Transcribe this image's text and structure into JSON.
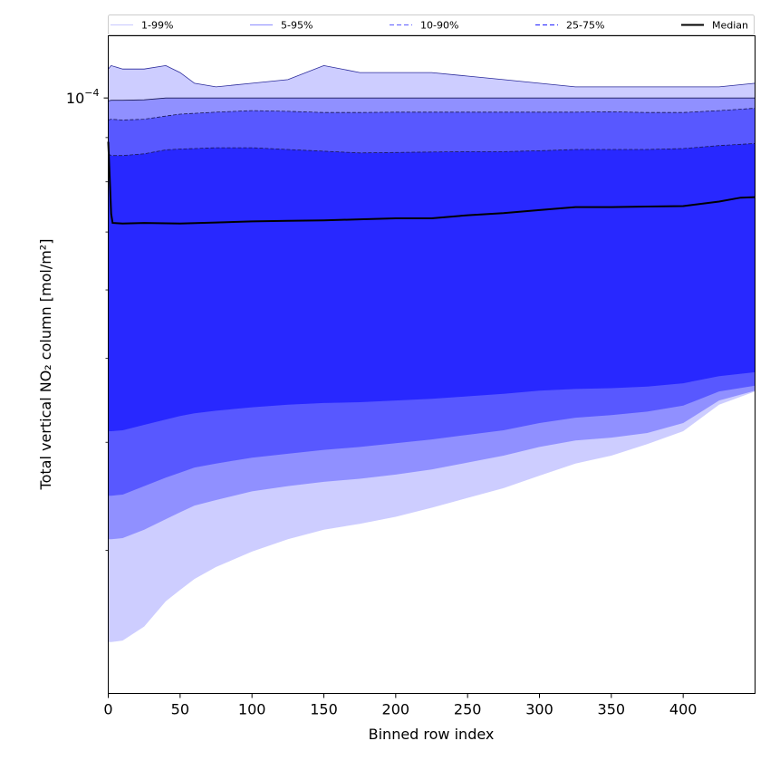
{
  "chart_data": {
    "type": "area",
    "xlabel": "Binned row index",
    "ylabel": "Total vertical NO₂ column [mol/m²]",
    "xlim": [
      0,
      450
    ],
    "ylim": [
      2.05e-05,
      0.000118
    ],
    "yscale": "log",
    "x_ticks": [
      0,
      50,
      100,
      150,
      200,
      250,
      300,
      350,
      400
    ],
    "y_major_tick": {
      "value": 0.0001,
      "base": "10",
      "exponent": "−4"
    },
    "y_minor_ticks": [
      3e-05,
      4e-05,
      5e-05,
      6e-05,
      7e-05,
      8e-05,
      9e-05
    ],
    "grid": false,
    "legend_position": "top (above plot, single row)",
    "legend": [
      {
        "label": "1-99%",
        "color": "#cfcfff",
        "style": "solid"
      },
      {
        "label": "5-95%",
        "color": "#9b9bff",
        "style": "solid"
      },
      {
        "label": "10-90%",
        "color": "#7070ff",
        "style": "dashed"
      },
      {
        "label": "25-75%",
        "color": "#3a3aff",
        "style": "dashed"
      },
      {
        "label": "Median",
        "color": "#000000",
        "style": "solid"
      }
    ],
    "x": [
      0,
      2,
      10,
      25,
      40,
      50,
      60,
      75,
      100,
      125,
      150,
      175,
      200,
      225,
      250,
      275,
      300,
      325,
      350,
      375,
      400,
      425,
      450
    ],
    "bands": [
      {
        "name": "1-99%",
        "color": "#cdcdff",
        "lower": [
          2.35e-05,
          2.35e-05,
          2.36e-05,
          2.45e-05,
          2.62e-05,
          2.7e-05,
          2.78e-05,
          2.87e-05,
          2.99e-05,
          3.09e-05,
          3.17e-05,
          3.22e-05,
          3.28e-05,
          3.36e-05,
          3.45e-05,
          3.54e-05,
          3.66e-05,
          3.78e-05,
          3.86e-05,
          3.98e-05,
          4.12e-05,
          4.42e-05,
          4.58e-05
        ],
        "upper": [
          0.000108,
          0.000109,
          0.000108,
          0.000108,
          0.000109,
          0.000107,
          0.000104,
          0.000103,
          0.000104,
          0.000105,
          0.000109,
          0.000107,
          0.000107,
          0.000107,
          0.000106,
          0.000105,
          0.000104,
          0.000103,
          0.000103,
          0.000103,
          0.000103,
          0.000103,
          0.000104
        ]
      },
      {
        "name": "5-95%",
        "color": "#9090ff",
        "lower": [
          3.09e-05,
          3.09e-05,
          3.1e-05,
          3.17e-05,
          3.26e-05,
          3.32e-05,
          3.38e-05,
          3.43e-05,
          3.51e-05,
          3.56e-05,
          3.6e-05,
          3.63e-05,
          3.67e-05,
          3.72e-05,
          3.79e-05,
          3.86e-05,
          3.95e-05,
          4.02e-05,
          4.05e-05,
          4.1e-05,
          4.21e-05,
          4.47e-05,
          4.59e-05
        ],
        "upper": [
          9.92e-05,
          9.94e-05,
          9.94e-05,
          9.95e-05,
          0.0001,
          0.0001,
          0.0001,
          0.0001,
          0.0001,
          0.0001,
          0.0001,
          0.0001,
          0.0001,
          0.0001,
          0.0001,
          0.0001,
          0.0001,
          0.0001,
          0.0001,
          0.0001,
          0.0001,
          0.0001,
          0.0001
        ]
      },
      {
        "name": "10-90%",
        "color": "#5858ff",
        "lower": [
          3.47e-05,
          3.47e-05,
          3.48e-05,
          3.56e-05,
          3.64e-05,
          3.69e-05,
          3.74e-05,
          3.78e-05,
          3.84e-05,
          3.88e-05,
          3.92e-05,
          3.95e-05,
          3.99e-05,
          4.03e-05,
          4.08e-05,
          4.13e-05,
          4.21e-05,
          4.27e-05,
          4.3e-05,
          4.34e-05,
          4.41e-05,
          4.58e-05,
          4.65e-05
        ],
        "upper": [
          9.43e-05,
          9.45e-05,
          9.43e-05,
          9.45e-05,
          9.53e-05,
          9.58e-05,
          9.6e-05,
          9.63e-05,
          9.67e-05,
          9.65e-05,
          9.62e-05,
          9.62e-05,
          9.63e-05,
          9.63e-05,
          9.63e-05,
          9.63e-05,
          9.63e-05,
          9.63e-05,
          9.64e-05,
          9.62e-05,
          9.62e-05,
          9.67e-05,
          9.73e-05
        ]
      },
      {
        "name": "25-75%",
        "color": "#2828ff",
        "lower": [
          4.12e-05,
          4.12e-05,
          4.13e-05,
          4.19e-05,
          4.25e-05,
          4.29e-05,
          4.32e-05,
          4.35e-05,
          4.39e-05,
          4.42e-05,
          4.44e-05,
          4.45e-05,
          4.47e-05,
          4.49e-05,
          4.52e-05,
          4.55e-05,
          4.59e-05,
          4.61e-05,
          4.62e-05,
          4.64e-05,
          4.68e-05,
          4.77e-05,
          4.82e-05
        ],
        "upper": [
          8.62e-05,
          8.58e-05,
          8.58e-05,
          8.62e-05,
          8.71e-05,
          8.73e-05,
          8.74e-05,
          8.76e-05,
          8.76e-05,
          8.72e-05,
          8.68e-05,
          8.64e-05,
          8.65e-05,
          8.66e-05,
          8.67e-05,
          8.67e-05,
          8.69e-05,
          8.72e-05,
          8.72e-05,
          8.72e-05,
          8.74e-05,
          8.81e-05,
          8.86e-05
        ]
      }
    ],
    "median": {
      "name": "Median",
      "color": "#000000",
      "x": [
        0,
        1,
        2,
        3,
        10,
        25,
        50,
        75,
        100,
        125,
        150,
        175,
        200,
        225,
        250,
        275,
        300,
        325,
        350,
        375,
        400,
        425,
        440,
        450
      ],
      "values": [
        8.9e-05,
        8.1e-05,
        7.35e-05,
        7.17e-05,
        7.16e-05,
        7.17e-05,
        7.16e-05,
        7.18e-05,
        7.2e-05,
        7.21e-05,
        7.22e-05,
        7.24e-05,
        7.26e-05,
        7.26e-05,
        7.32e-05,
        7.36e-05,
        7.42e-05,
        7.48e-05,
        7.48e-05,
        7.49e-05,
        7.5e-05,
        7.59e-05,
        7.67e-05,
        7.68e-05
      ]
    }
  }
}
